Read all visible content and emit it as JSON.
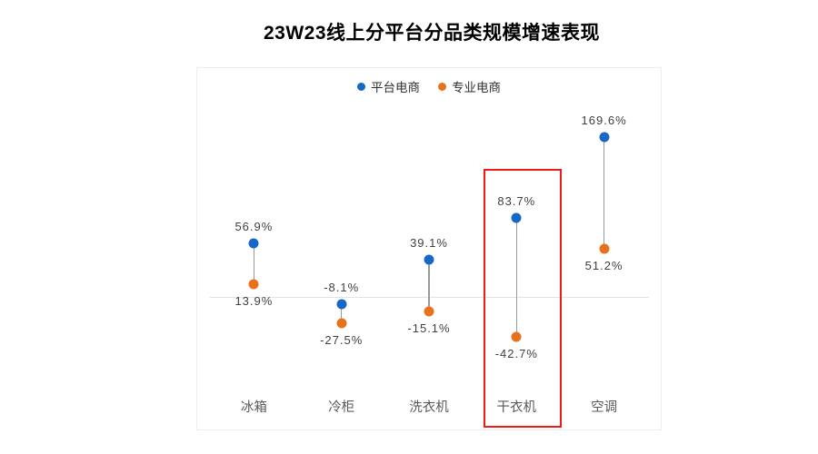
{
  "title": "23W23线上分平台分品类规模增速表现",
  "legend": [
    {
      "label": "平台电商",
      "color": "#1668c6"
    },
    {
      "label": "专业电商",
      "color": "#e8721c"
    }
  ],
  "chart_data": {
    "type": "dumbbell",
    "title": "23W23线上分平台分品类规模增速表现",
    "categories": [
      "冰箱",
      "冷柜",
      "洗衣机",
      "干衣机",
      "空调"
    ],
    "series": [
      {
        "name": "平台电商",
        "color": "#1668c6",
        "values": [
          56.9,
          -8.1,
          39.1,
          83.7,
          169.6
        ],
        "labels": [
          "56.9%",
          "-8.1%",
          "39.1%",
          "83.7%",
          "169.6%"
        ]
      },
      {
        "name": "专业电商",
        "color": "#e8721c",
        "values": [
          13.9,
          -27.5,
          -15.1,
          -42.7,
          51.2
        ],
        "labels": [
          "13.9%",
          "-27.5%",
          "-15.1%",
          "-42.7%",
          "51.2%"
        ]
      }
    ],
    "xlabel": "",
    "ylabel": "",
    "ylim": [
      -80,
      200
    ],
    "baseline": 0,
    "grid": "zero-line-only",
    "legend_position": "top-center",
    "connector_color": "#9a9a9a",
    "zero_line_color": "#e3e3e3",
    "highlight": {
      "category": "干衣机",
      "color": "#f01a1a"
    }
  }
}
